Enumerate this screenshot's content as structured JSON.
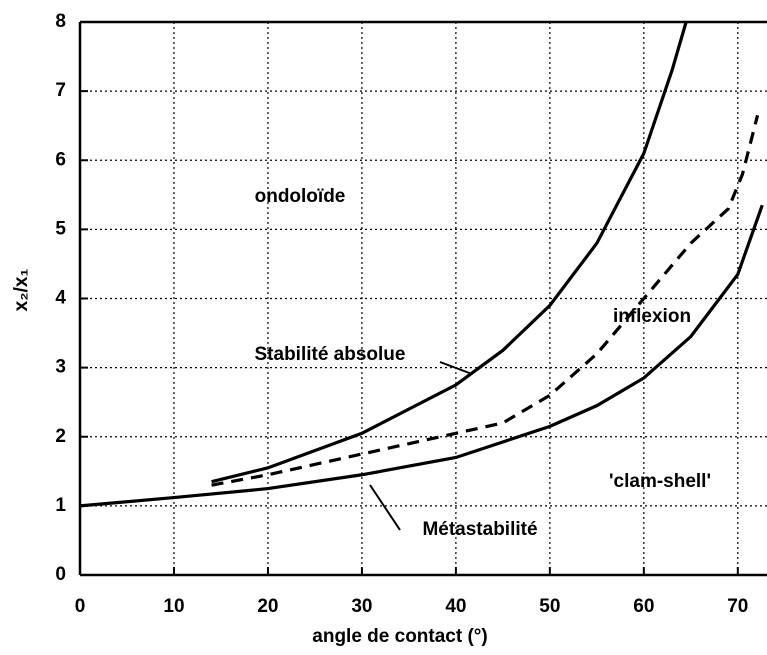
{
  "chart_data": {
    "type": "line",
    "x_label": "angle de contact (°)",
    "y_label": "x₂/x₁",
    "xlim": [
      0,
      73
    ],
    "ylim": [
      0,
      8
    ],
    "xticks": [
      0,
      10,
      20,
      30,
      40,
      50,
      60,
      70
    ],
    "yticks": [
      0,
      1,
      2,
      3,
      4,
      5,
      6,
      7,
      8
    ],
    "grid": true,
    "series": [
      {
        "name": "Stabilité absolue",
        "color": "#000000",
        "style": "solid",
        "x": [
          14,
          20,
          30,
          40,
          45,
          50,
          55,
          60,
          63,
          64.5
        ],
        "values": [
          1.35,
          1.55,
          2.05,
          2.75,
          3.25,
          3.9,
          4.8,
          6.1,
          7.3,
          8
        ]
      },
      {
        "color": "#000000",
        "style": "dashed",
        "x": [
          14,
          20,
          30,
          40,
          45,
          50,
          55,
          60,
          65,
          69,
          70.5,
          72.1
        ],
        "values": [
          1.3,
          1.45,
          1.75,
          2.05,
          2.2,
          2.6,
          3.2,
          4.0,
          4.8,
          5.3,
          5.8,
          6.65
        ]
      },
      {
        "name": "Métastabilité",
        "color": "#000000",
        "style": "solid",
        "x": [
          0,
          10,
          20,
          30,
          40,
          50,
          55,
          60,
          65,
          70,
          72.6
        ],
        "values": [
          1,
          1.12,
          1.25,
          1.45,
          1.7,
          2.15,
          2.45,
          2.85,
          3.45,
          4.35,
          5.35
        ]
      }
    ],
    "annotations": [
      "ondoloïde",
      "inflexion",
      "'clam-shell'"
    ]
  }
}
